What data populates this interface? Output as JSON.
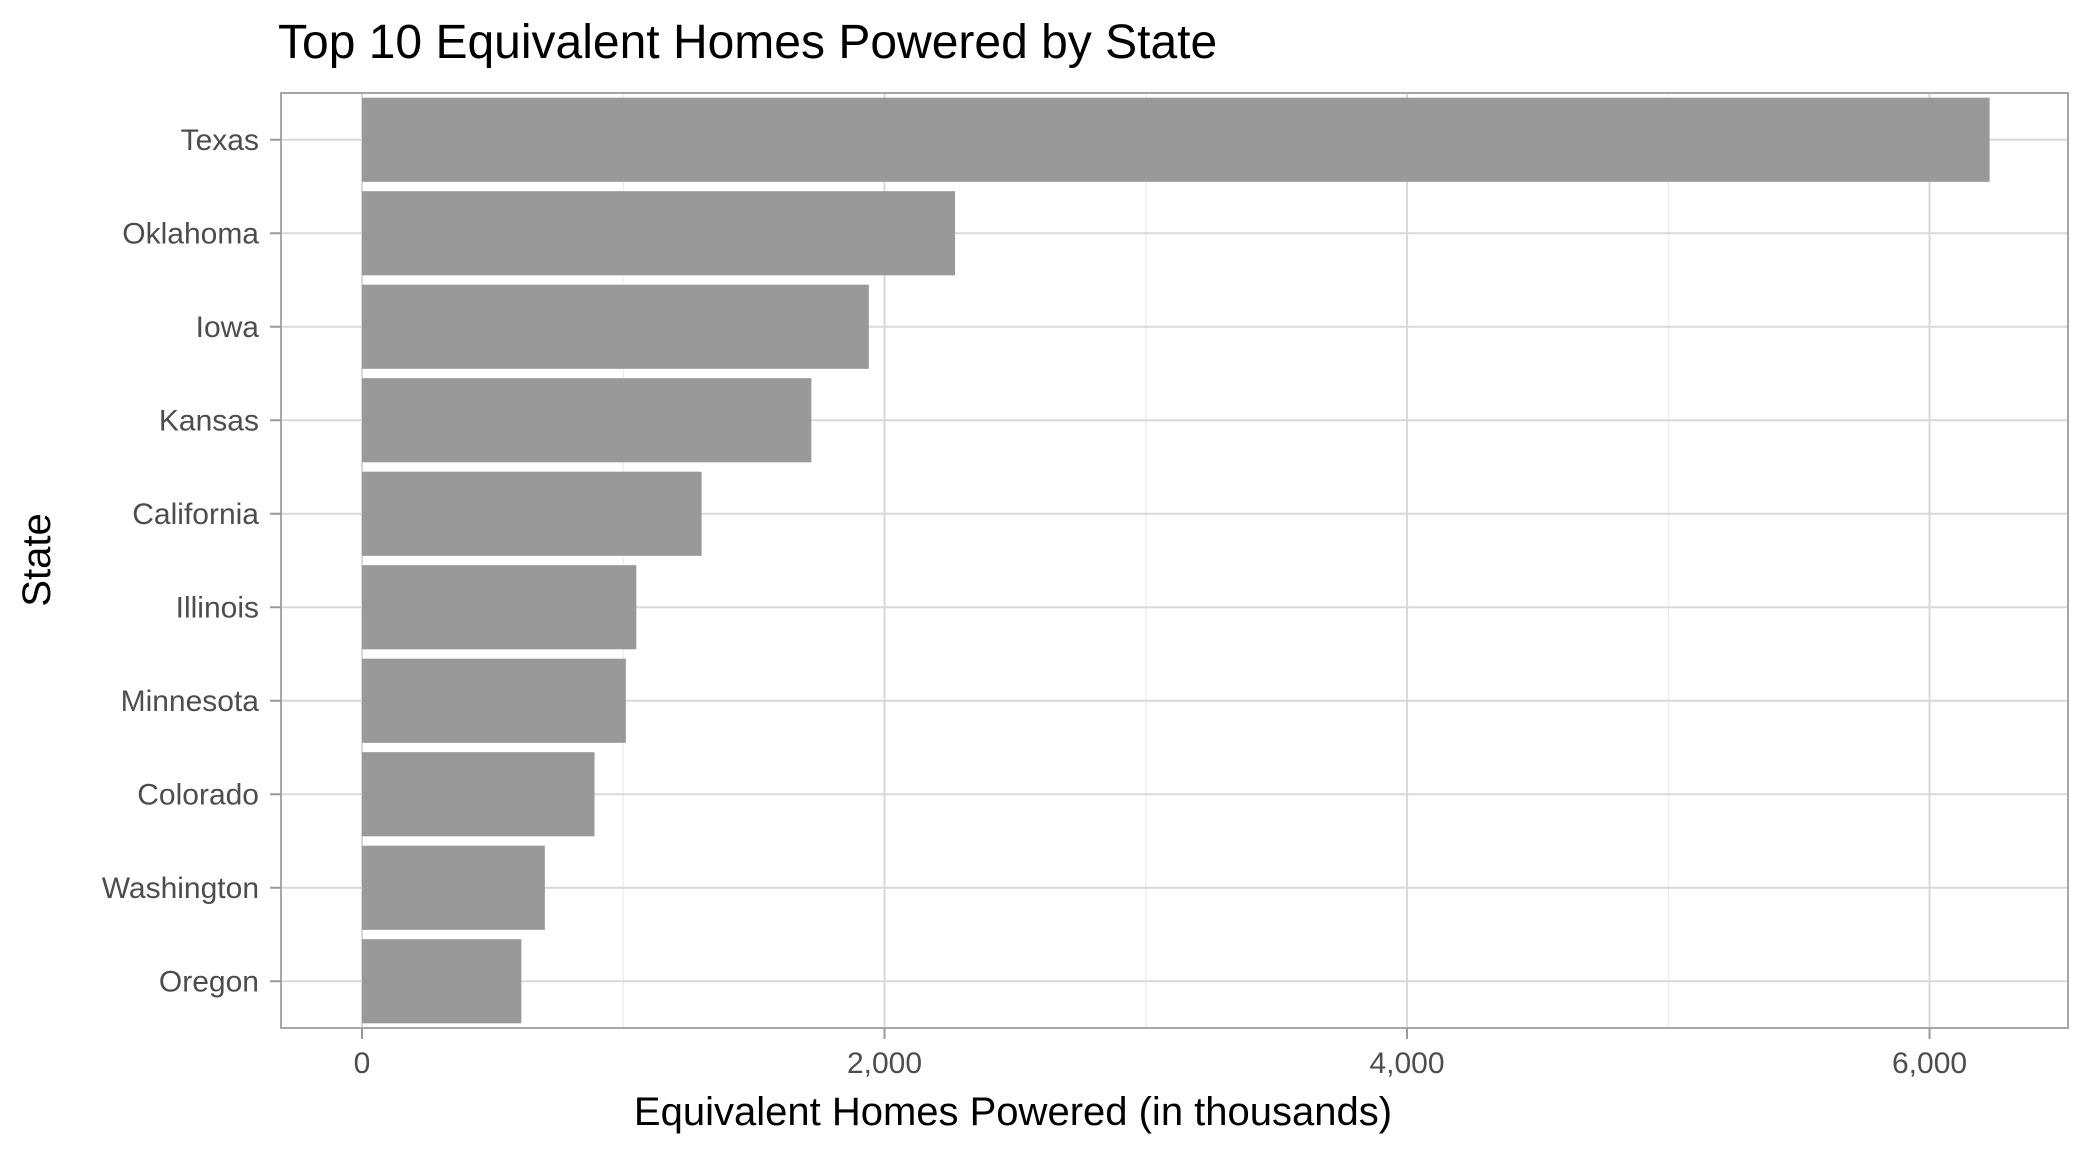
{
  "chart_data": {
    "type": "bar",
    "orientation": "horizontal",
    "title": "Top 10 Equivalent Homes Powered by State",
    "xlabel": "Equivalent Homes Powered (in thousands)",
    "ylabel": "State",
    "categories": [
      "Texas",
      "Oklahoma",
      "Iowa",
      "Kansas",
      "California",
      "Illinois",
      "Minnesota",
      "Colorado",
      "Washington",
      "Oregon"
    ],
    "values": [
      6230,
      2270,
      1940,
      1720,
      1300,
      1050,
      1010,
      890,
      700,
      610
    ],
    "xlim": [
      -310,
      6530
    ],
    "xticks": [
      0,
      2000,
      4000,
      6000
    ],
    "xtick_labels": [
      "0",
      "2,000",
      "4,000",
      "6,000"
    ],
    "bar_color": "#999999",
    "grid": true
  }
}
